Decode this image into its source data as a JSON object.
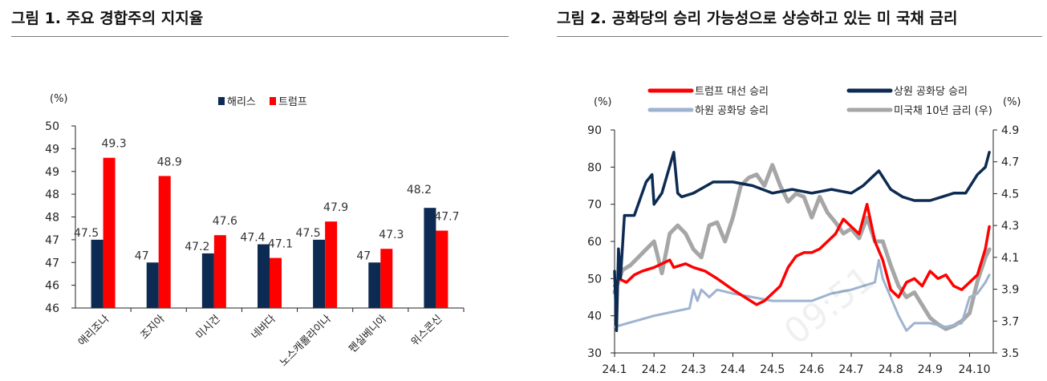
{
  "figure1": {
    "title": "그림 1. 주요 경합주의 지지율",
    "chart_data": {
      "type": "bar",
      "unit_label": "(%)",
      "categories": [
        "애리조나",
        "조지아",
        "미시건",
        "네바다",
        "노스캐롤라이나",
        "펜실베니아",
        "위스콘신"
      ],
      "series": [
        {
          "name": "해리스",
          "color": "#0d2b52",
          "values": [
            47.5,
            47.0,
            47.2,
            47.4,
            47.5,
            47.0,
            48.2
          ],
          "labels": [
            "47.5",
            "47",
            "47.2",
            "47.4",
            "47.5",
            "47",
            "48.2"
          ]
        },
        {
          "name": "트럼프",
          "color": "#ff0000",
          "values": [
            49.3,
            48.9,
            47.6,
            47.1,
            47.9,
            47.3,
            47.7
          ],
          "labels": [
            "49.3",
            "48.9",
            "47.6",
            "47.1",
            "47.9",
            "47.3",
            "47.7"
          ]
        }
      ],
      "ylim": [
        46,
        50
      ],
      "y_ticks": [
        "50",
        "49",
        "49",
        "48",
        "48",
        "47",
        "47",
        "46",
        "46"
      ],
      "legend": "top-center"
    }
  },
  "figure2": {
    "title": "그림 2. 공화당의 승리 가능성으로 상승하고 있는 미 국채 금리",
    "chart_data": {
      "type": "line",
      "left_unit": "(%)",
      "right_unit": "(%)",
      "ylim_left": [
        30,
        90
      ],
      "ylim_right": [
        3.5,
        4.9
      ],
      "y_ticks_left": [
        "90",
        "80",
        "70",
        "60",
        "50",
        "40",
        "30"
      ],
      "y_ticks_right": [
        "4.9",
        "4.7",
        "4.5",
        "4.3",
        "4.1",
        "3.9",
        "3.7",
        "3.5"
      ],
      "x_ticks": [
        "24.1",
        "24.2",
        "24.3",
        "24.4",
        "24.5",
        "24.6",
        "24.7",
        "24.8",
        "24.9",
        "24.10"
      ],
      "x_tick_pos": [
        0,
        1,
        2,
        3,
        4,
        5,
        6,
        7,
        8,
        9
      ],
      "legend": "top",
      "series": [
        {
          "name": "트럼프 대선 승리",
          "axis": "left",
          "color": "#ff0000",
          "x": [
            0,
            0.1,
            0.3,
            0.5,
            0.7,
            1.0,
            1.2,
            1.4,
            1.5,
            1.8,
            2.0,
            2.3,
            2.6,
            3.0,
            3.3,
            3.6,
            3.8,
            4.0,
            4.2,
            4.4,
            4.6,
            4.8,
            5.0,
            5.2,
            5.4,
            5.6,
            5.8,
            6.0,
            6.2,
            6.4,
            6.6,
            6.8,
            7.0,
            7.2,
            7.4,
            7.6,
            7.8,
            8.0,
            8.2,
            8.4,
            8.6,
            8.8,
            9.0,
            9.2,
            9.4,
            9.5
          ],
          "y": [
            48,
            50,
            49,
            51,
            52,
            53,
            54,
            55,
            53,
            54,
            53,
            52,
            50,
            47,
            45,
            43,
            44,
            46,
            48,
            53,
            56,
            57,
            57,
            58,
            60,
            62,
            66,
            64,
            62,
            70,
            60,
            55,
            47,
            45,
            49,
            50,
            48,
            52,
            50,
            51,
            48,
            47,
            49,
            51,
            58,
            64
          ]
        },
        {
          "name": "상원 공화당 승리",
          "axis": "left",
          "color": "#0d2b52",
          "x": [
            0,
            0.05,
            0.1,
            0.15,
            0.25,
            0.5,
            0.8,
            0.95,
            1.0,
            1.2,
            1.5,
            1.6,
            1.7,
            2.0,
            2.5,
            3.0,
            3.5,
            4.0,
            4.5,
            5.0,
            5.5,
            6.0,
            6.3,
            6.5,
            6.7,
            7.0,
            7.3,
            7.6,
            8.0,
            8.3,
            8.6,
            8.9,
            9.2,
            9.4,
            9.5
          ],
          "y": [
            52,
            36,
            58,
            50,
            67,
            67,
            76,
            78,
            70,
            73,
            84,
            73,
            72,
            73,
            76,
            76,
            75,
            73,
            74,
            73,
            74,
            73,
            75,
            77,
            79,
            74,
            72,
            71,
            71,
            72,
            73,
            73,
            78,
            80,
            84
          ]
        },
        {
          "name": "하원 공화당 승리",
          "axis": "left",
          "color": "#9eb3cf",
          "x": [
            0,
            1.0,
            1.9,
            2.0,
            2.1,
            2.2,
            2.4,
            2.6,
            3.0,
            3.5,
            4.0,
            4.5,
            5.0,
            5.5,
            6.0,
            6.3,
            6.6,
            6.7,
            6.8,
            7.0,
            7.2,
            7.4,
            7.6,
            8.0,
            8.4,
            8.8,
            9.0,
            9.2,
            9.4,
            9.5
          ],
          "y": [
            37,
            40,
            42,
            47,
            44,
            47,
            45,
            47,
            46,
            45,
            44,
            44,
            44,
            46,
            47,
            48,
            49,
            55,
            50,
            45,
            40,
            36,
            38,
            38,
            37,
            38,
            45,
            46,
            49,
            51
          ]
        },
        {
          "name": "미국채 10년 금리 (우)",
          "axis": "right",
          "color": "#a6a6a6",
          "x": [
            0,
            0.2,
            0.4,
            0.6,
            0.8,
            1.0,
            1.2,
            1.4,
            1.6,
            1.8,
            2.0,
            2.2,
            2.4,
            2.6,
            2.8,
            3.0,
            3.2,
            3.4,
            3.6,
            3.8,
            4.0,
            4.2,
            4.4,
            4.6,
            4.8,
            5.0,
            5.2,
            5.4,
            5.6,
            5.8,
            6.0,
            6.2,
            6.4,
            6.6,
            6.8,
            7.0,
            7.2,
            7.4,
            7.6,
            7.8,
            8.0,
            8.2,
            8.4,
            8.6,
            8.8,
            9.0,
            9.2,
            9.4,
            9.5
          ],
          "y": [
            3.88,
            4.02,
            4.05,
            4.1,
            4.15,
            4.2,
            4.0,
            4.25,
            4.3,
            4.25,
            4.15,
            4.1,
            4.3,
            4.32,
            4.2,
            4.35,
            4.55,
            4.6,
            4.62,
            4.55,
            4.68,
            4.55,
            4.45,
            4.5,
            4.48,
            4.35,
            4.48,
            4.38,
            4.32,
            4.25,
            4.28,
            4.22,
            4.35,
            4.2,
            4.2,
            4.05,
            3.92,
            3.85,
            3.88,
            3.8,
            3.72,
            3.68,
            3.65,
            3.67,
            3.7,
            3.75,
            3.95,
            4.1,
            4.15
          ]
        }
      ]
    }
  },
  "watermark": "09:51"
}
